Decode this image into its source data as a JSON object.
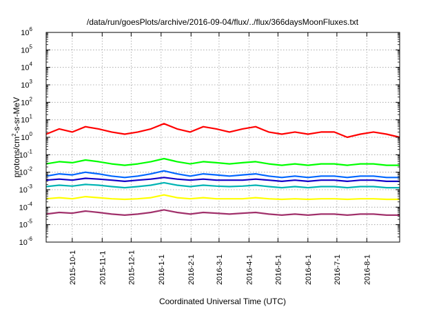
{
  "chart_data": {
    "type": "line",
    "title": "/data/run/goesPlots/archive/2016-09-04/flux/../flux/366daysMoonFluxes.txt",
    "xlabel": "Coordinated Universal Time (UTC)",
    "ylabel_main": "protons/cm",
    "ylabel_sup": "2",
    "ylabel_tail": "-s-sr-MeV",
    "x_range": [
      "2015-09-04",
      "2016-09-04"
    ],
    "x_scale": "time",
    "y_scale": "log",
    "ylim": [
      1e-06,
      1000000.0
    ],
    "grid": true,
    "x_ticks": [
      "2015-10-1",
      "2015-11-1",
      "2015-12-1",
      "2016-1-1",
      "2016-2-1",
      "2016-3-1",
      "2016-4-1",
      "2016-5-1",
      "2016-6-1",
      "2016-7-1",
      "2016-8-1"
    ],
    "y_ticks": [
      {
        "base": "10",
        "exp": "-6"
      },
      {
        "base": "10",
        "exp": "-5"
      },
      {
        "base": "10",
        "exp": "-4"
      },
      {
        "base": "10",
        "exp": "-3"
      },
      {
        "base": "10",
        "exp": "-2"
      },
      {
        "base": "10",
        "exp": "-1"
      },
      {
        "base": "10",
        "exp": "0"
      },
      {
        "base": "10",
        "exp": "1"
      },
      {
        "base": "10",
        "exp": "2"
      },
      {
        "base": "10",
        "exp": "3"
      },
      {
        "base": "10",
        "exp": "4"
      },
      {
        "base": "10",
        "exp": "5"
      },
      {
        "base": "10",
        "exp": "6"
      }
    ],
    "series": [
      {
        "color": "#ff0000",
        "baseline": 2.0,
        "values": [
          1.5,
          3,
          2,
          4,
          3,
          2,
          1.5,
          2,
          3,
          6,
          3,
          2,
          4,
          3,
          2,
          3,
          4,
          2,
          1.5,
          2,
          1.5,
          2,
          2,
          1,
          1.5,
          2,
          1.5,
          1
        ]
      },
      {
        "color": "#00ff00",
        "baseline": 0.03,
        "values": [
          0.03,
          0.04,
          0.035,
          0.05,
          0.04,
          0.03,
          0.025,
          0.03,
          0.04,
          0.06,
          0.04,
          0.03,
          0.04,
          0.035,
          0.03,
          0.035,
          0.04,
          0.03,
          0.025,
          0.03,
          0.025,
          0.03,
          0.03,
          0.025,
          0.03,
          0.03,
          0.025,
          0.025
        ]
      },
      {
        "color": "#0066ff",
        "baseline": 0.006,
        "values": [
          0.006,
          0.008,
          0.007,
          0.01,
          0.008,
          0.006,
          0.005,
          0.006,
          0.008,
          0.012,
          0.008,
          0.006,
          0.008,
          0.007,
          0.006,
          0.007,
          0.008,
          0.006,
          0.005,
          0.006,
          0.005,
          0.006,
          0.006,
          0.005,
          0.006,
          0.006,
          0.005,
          0.005
        ]
      },
      {
        "color": "#1000c8",
        "baseline": 0.0035,
        "values": [
          0.0035,
          0.004,
          0.0035,
          0.0045,
          0.004,
          0.0035,
          0.003,
          0.0035,
          0.004,
          0.005,
          0.004,
          0.0035,
          0.004,
          0.0035,
          0.0035,
          0.0035,
          0.004,
          0.0035,
          0.003,
          0.0035,
          0.003,
          0.0035,
          0.0035,
          0.003,
          0.0035,
          0.0035,
          0.003,
          0.003
        ]
      },
      {
        "color": "#00b4b4",
        "baseline": 0.0015,
        "values": [
          0.0015,
          0.0018,
          0.0016,
          0.002,
          0.0018,
          0.0015,
          0.0013,
          0.0015,
          0.0018,
          0.0025,
          0.0018,
          0.0015,
          0.0018,
          0.0016,
          0.0015,
          0.0016,
          0.0018,
          0.0015,
          0.0013,
          0.0015,
          0.0013,
          0.0015,
          0.0015,
          0.0013,
          0.0015,
          0.0015,
          0.0013,
          0.0013
        ]
      },
      {
        "color": "#ffff00",
        "baseline": 0.0003,
        "values": [
          0.0003,
          0.00035,
          0.0003,
          0.0004,
          0.00035,
          0.0003,
          0.00028,
          0.0003,
          0.00035,
          0.0005,
          0.00035,
          0.0003,
          0.00035,
          0.0003,
          0.0003,
          0.0003,
          0.00035,
          0.0003,
          0.00028,
          0.0003,
          0.00028,
          0.0003,
          0.0003,
          0.00028,
          0.0003,
          0.0003,
          0.00028,
          0.00028
        ]
      },
      {
        "color": "#a0306a",
        "baseline": 4e-05,
        "values": [
          4e-05,
          5e-05,
          4.5e-05,
          6e-05,
          5e-05,
          4e-05,
          3.5e-05,
          4e-05,
          5e-05,
          7e-05,
          5e-05,
          4e-05,
          5e-05,
          4.5e-05,
          4e-05,
          4.5e-05,
          5e-05,
          4e-05,
          3.5e-05,
          4e-05,
          3.5e-05,
          4e-05,
          4e-05,
          3.5e-05,
          4e-05,
          4e-05,
          3.5e-05,
          3.5e-05
        ]
      }
    ]
  }
}
